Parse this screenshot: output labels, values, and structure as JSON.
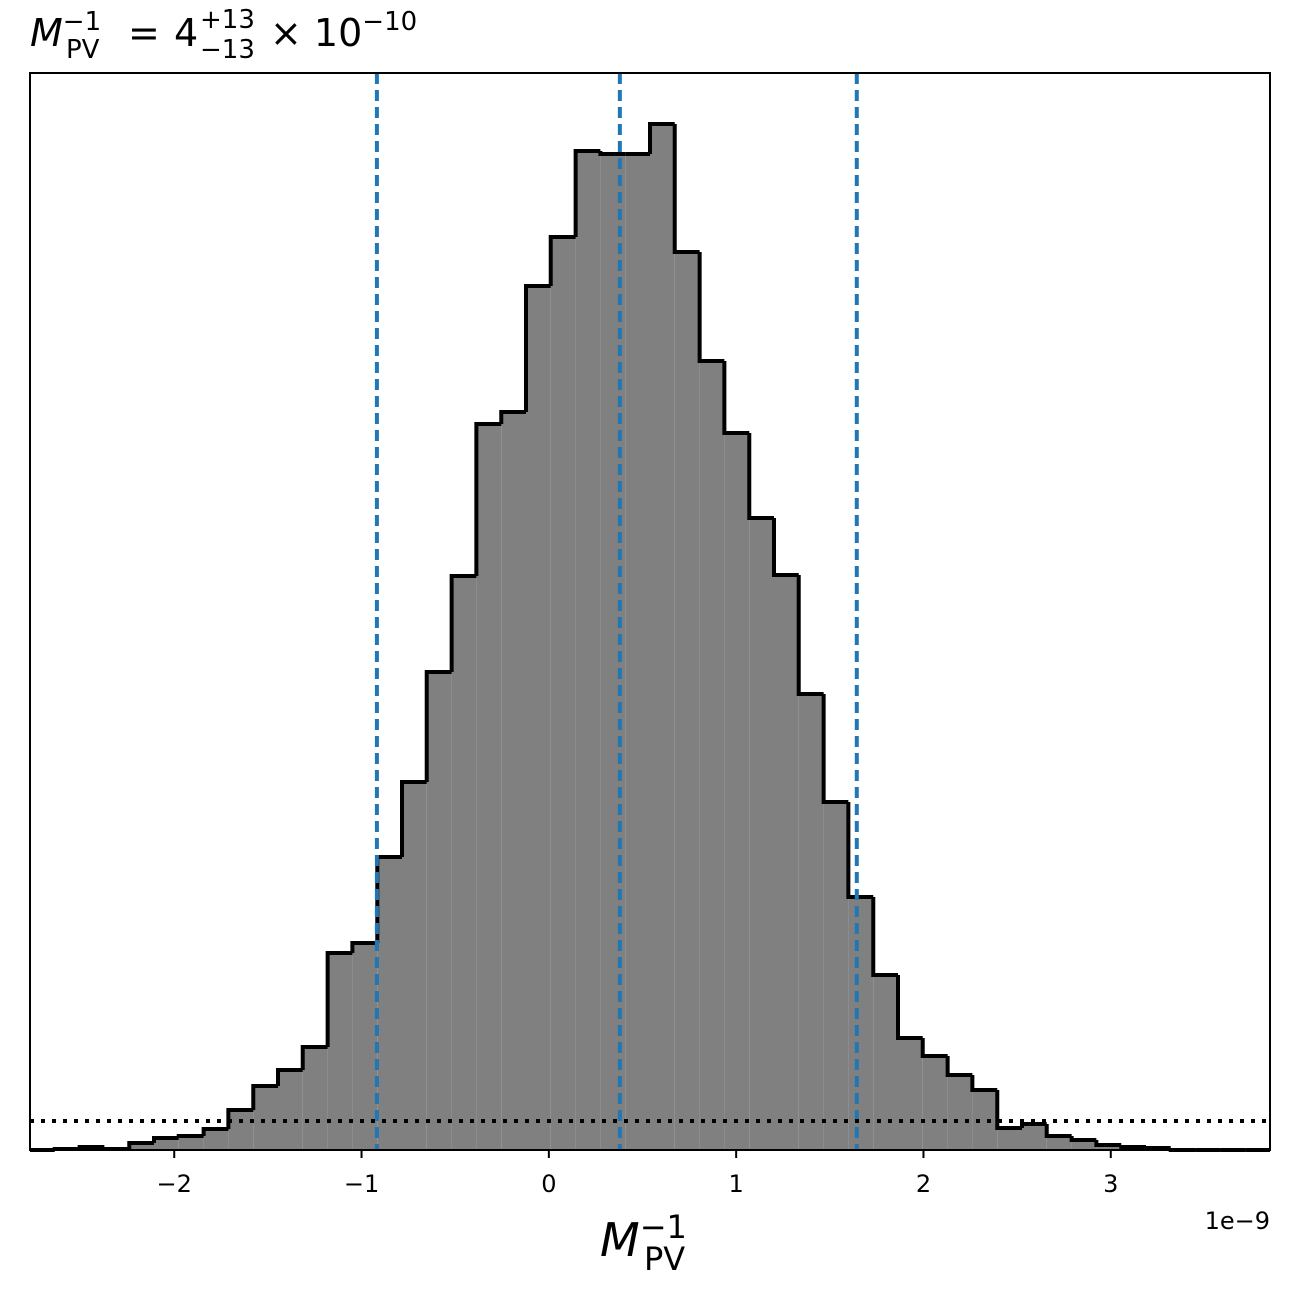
{
  "chart_data": {
    "type": "histogram",
    "title": {
      "symbol": "M",
      "subscript": "PV",
      "superscript": "−1",
      "equals": "=",
      "value": "4",
      "plus": "+13",
      "minus": "−13",
      "times": "× 10",
      "exponent": "−10"
    },
    "xlabel": {
      "symbol": "M",
      "subscript": "PV",
      "superscript": "−1"
    },
    "x_offset_label": "1e−9",
    "bins": [
      -2.77,
      -2.638,
      -2.505,
      -2.373,
      -2.24,
      -2.108,
      -1.976,
      -1.843,
      -1.711,
      -1.578,
      -1.446,
      -1.314,
      -1.181,
      -1.049,
      -0.916,
      -0.784,
      -0.652,
      -0.519,
      -0.387,
      -0.254,
      -0.122,
      0.01,
      0.143,
      0.275,
      0.408,
      0.54,
      0.672,
      0.805,
      0.937,
      1.07,
      1.202,
      1.334,
      1.467,
      1.599,
      1.732,
      1.864,
      1.996,
      2.129,
      2.261,
      2.394,
      2.526,
      2.658,
      2.791,
      2.923,
      3.056,
      3.188,
      3.32,
      3.453,
      3.585,
      3.718,
      3.85
    ],
    "values": [
      0,
      1,
      3,
      1,
      7,
      12,
      14,
      21,
      40,
      64,
      80,
      103,
      197,
      207,
      293,
      368,
      478,
      574,
      726,
      738,
      864,
      913,
      999,
      996,
      996,
      1026,
      898,
      789,
      717,
      632,
      575,
      456,
      348,
      253,
      175,
      112,
      94,
      75,
      60,
      22,
      26,
      14,
      10,
      5,
      3,
      2,
      0,
      0,
      0,
      0
    ],
    "color": "#808080",
    "edgecolor": "#000000",
    "xlim": [
      -2.77,
      3.85
    ],
    "ylim": [
      0,
      1077
    ],
    "xticks": [
      {
        "value": -2,
        "label": "−2"
      },
      {
        "value": -1,
        "label": "−1"
      },
      0,
      1,
      2,
      3
    ],
    "vlines": [
      -0.918,
      0.379,
      1.644
    ],
    "vline_color": "#1f77b4",
    "hline": 29,
    "hline_color": "#000000"
  }
}
